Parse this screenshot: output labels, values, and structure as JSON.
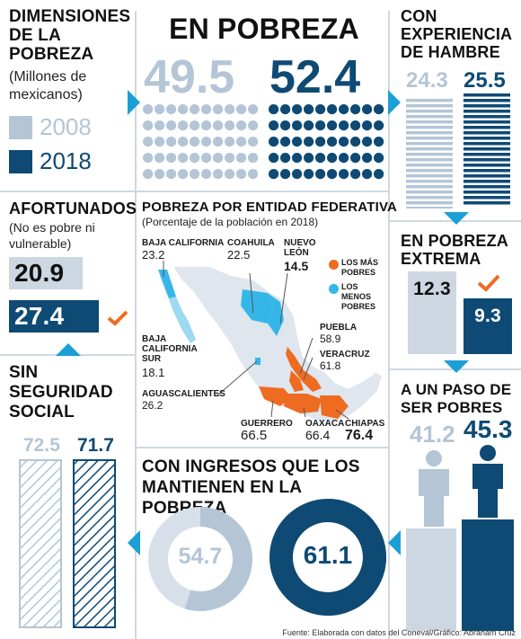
{
  "colors": {
    "y2008": "#b4c5d6",
    "y2018": "#0e4a74",
    "accent": "#1c9fd6",
    "hot": "#ee6b22",
    "cold": "#35b6e8",
    "map": "#dfe6ed"
  },
  "header": {
    "dimensions_title": "DIMENSIONES DE LA POBREZA",
    "dimensions_sub": "(Millones de mexicanos)",
    "legend": [
      {
        "label": "2008"
      },
      {
        "label": "2018"
      }
    ],
    "main_title": "EN POBREZA"
  },
  "chart_data": [
    {
      "id": "en-pobreza",
      "type": "pictogram",
      "title": "EN POBREZA",
      "categories": [
        "2008",
        "2018"
      ],
      "values": [
        49.5,
        52.4
      ]
    },
    {
      "id": "hambre",
      "type": "bar",
      "title": "CON EXPERIENCIA DE HAMBRE",
      "categories": [
        "2008",
        "2018"
      ],
      "values": [
        24.3,
        25.5
      ]
    },
    {
      "id": "extrema",
      "type": "bar",
      "title": "EN POBREZA EXTREMA",
      "categories": [
        "2008",
        "2018"
      ],
      "values": [
        12.3,
        9.3
      ]
    },
    {
      "id": "afortunados",
      "type": "bar",
      "title": "AFORTUNADOS",
      "subtitle": "(No es pobre ni vulnerable)",
      "categories": [
        "2008",
        "2018"
      ],
      "values": [
        20.9,
        27.4
      ]
    },
    {
      "id": "seguridad",
      "type": "bar",
      "title": "SIN SEGURIDAD SOCIAL",
      "categories": [
        "2008",
        "2018"
      ],
      "values": [
        72.5,
        71.7
      ]
    },
    {
      "id": "ingresos",
      "type": "pie",
      "title": "CON INGRESOS QUE LOS MANTIENEN EN LA POBREZA",
      "categories": [
        "2008",
        "2018"
      ],
      "values": [
        54.7,
        61.1
      ]
    },
    {
      "id": "paso",
      "type": "pictogram",
      "title": "A UN PASO DE SER POBRES",
      "categories": [
        "2008",
        "2018"
      ],
      "values": [
        41.2,
        45.3
      ]
    },
    {
      "id": "mapa",
      "type": "map",
      "title": "POBREZA POR ENTIDAD FEDERATIVA",
      "subtitle": "(Porcentaje de la población en 2018)",
      "legend": [
        {
          "label": "LOS MÁS POBRES"
        },
        {
          "label": "LOS MENOS POBRES"
        }
      ],
      "states": [
        {
          "name": "BAJA CALIFORNIA",
          "value": "23.2"
        },
        {
          "name": "COAHUILA",
          "value": "22.5"
        },
        {
          "name": "NUEVO LEÓN",
          "value": "14.5"
        },
        {
          "name": "BAJA CALIFORNIA SUR",
          "value": "18.1"
        },
        {
          "name": "AGUASCALIENTES",
          "value": "26.2"
        },
        {
          "name": "PUEBLA",
          "value": "58.9"
        },
        {
          "name": "VERACRUZ",
          "value": "61.8"
        },
        {
          "name": "GUERRERO",
          "value": "66.5"
        },
        {
          "name": "OAXACA",
          "value": "66.4"
        },
        {
          "name": "CHIAPAS",
          "value": "76.4"
        }
      ]
    }
  ],
  "footer": {
    "source": "Fuente: Elaborada con datos del Coneval/Gráfico: Abraham Cruz"
  }
}
